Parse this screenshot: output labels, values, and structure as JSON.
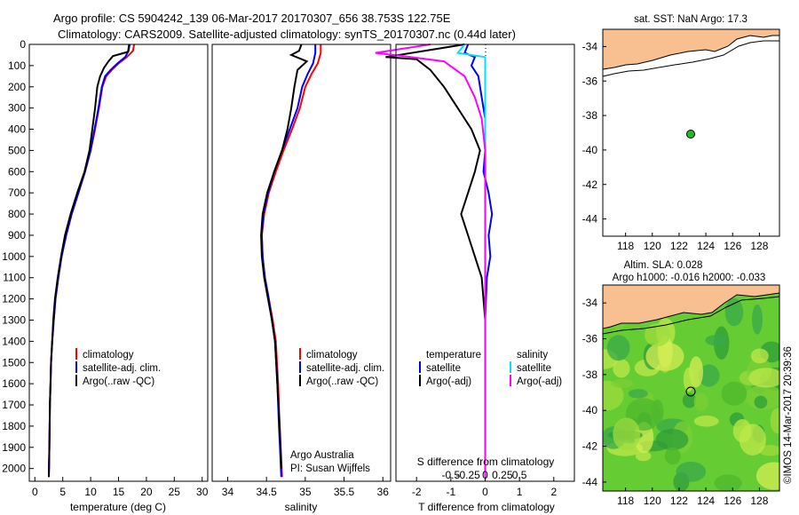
{
  "title": {
    "line1": "Argo profile: CS 5904242_139 06-Mar-2017 20170307_656 38.753S 122.75E",
    "line2": "Climatology: CARS2009. Satellite-adjusted climatology: synTS_20170307.nc (0.44d later)"
  },
  "colors": {
    "climatology": "#ff0000",
    "satellite": "#0000ff",
    "argo": "#000000",
    "sal_satellite": "#00e0ff",
    "sal_argo": "#ff00ff",
    "land": "#f8c090",
    "float_marker": "#22bb22"
  },
  "chart_data": [
    {
      "type": "line",
      "xlabel": "temperature (deg C)",
      "ylabel": "",
      "xlim": [
        -1,
        31
      ],
      "ylim": [
        2060,
        0
      ],
      "xticks": [
        "0",
        "5",
        "10",
        "15",
        "20",
        "25",
        "30"
      ],
      "yticks": [
        "0",
        "100",
        "200",
        "300",
        "400",
        "500",
        "600",
        "700",
        "800",
        "900",
        "1000",
        "1100",
        "1200",
        "1300",
        "1400",
        "1500",
        "1600",
        "1700",
        "1800",
        "1900",
        "2000"
      ],
      "legend": {
        "position": "center-right",
        "entries": [
          "climatology",
          "satellite-adj. clim.",
          "Argo(..raw -QC)"
        ]
      },
      "series": [
        {
          "name": "climatology",
          "color": "#ff0000",
          "x": [
            17.8,
            17.6,
            16.5,
            15.0,
            13.8,
            12.8,
            12.1,
            11.5,
            10.8,
            10.0,
            9.0,
            7.8,
            6.6,
            5.6,
            4.8,
            4.2,
            3.7,
            3.4,
            3.1,
            2.9,
            2.8,
            2.7,
            2.6,
            2.5
          ],
          "y": [
            0,
            30,
            60,
            90,
            120,
            150,
            200,
            300,
            400,
            500,
            600,
            700,
            800,
            900,
            1000,
            1100,
            1200,
            1300,
            1400,
            1500,
            1600,
            1700,
            1900,
            2040
          ]
        },
        {
          "name": "satellite-adj. clim.",
          "color": "#0000ff",
          "x": [
            17.0,
            16.8,
            16.2,
            14.8,
            13.6,
            12.6,
            12.0,
            11.4,
            10.7,
            10.0,
            9.0,
            7.8,
            6.6,
            5.6,
            4.8,
            4.2,
            3.7,
            3.4,
            3.1,
            2.9,
            2.8,
            2.7,
            2.6,
            2.5
          ],
          "y": [
            0,
            30,
            60,
            90,
            120,
            150,
            200,
            300,
            400,
            500,
            600,
            700,
            800,
            900,
            1000,
            1100,
            1200,
            1300,
            1400,
            1500,
            1600,
            1700,
            1900,
            2040
          ]
        },
        {
          "name": "Argo(..raw -QC)",
          "color": "#000000",
          "x": [
            16.9,
            16.7,
            14.0,
            13.2,
            12.4,
            11.7,
            11.2,
            10.8,
            10.3,
            9.8,
            8.9,
            7.6,
            6.4,
            5.4,
            4.7,
            4.1,
            3.6,
            3.3,
            3.1,
            2.9,
            2.8,
            2.7,
            2.6,
            2.5
          ],
          "y": [
            0,
            35,
            55,
            80,
            110,
            150,
            200,
            300,
            400,
            500,
            600,
            700,
            800,
            900,
            1000,
            1100,
            1200,
            1300,
            1400,
            1500,
            1600,
            1700,
            1900,
            2040
          ]
        }
      ]
    },
    {
      "type": "line",
      "xlabel": "salinity",
      "ylabel": "",
      "xlim": [
        33.8,
        36.1
      ],
      "ylim": [
        2060,
        0
      ],
      "xticks": [
        "34",
        "34.5",
        "35",
        "35.5",
        "36"
      ],
      "legend": {
        "position": "center-right",
        "entries": [
          "climatology",
          "satellite-adj. clim.",
          "Argo(..raw -QC)"
        ]
      },
      "annotation": {
        "line1": "Argo Australia",
        "line2": "PI: Susan Wijffels"
      },
      "series": [
        {
          "name": "climatology",
          "color": "#ff0000",
          "x": [
            35.2,
            35.2,
            35.16,
            35.08,
            35.0,
            34.93,
            34.83,
            34.72,
            34.62,
            34.53,
            34.47,
            34.44,
            34.45,
            34.48,
            34.53,
            34.58,
            34.62,
            34.65,
            34.67,
            34.69,
            34.7
          ],
          "y": [
            0,
            40,
            90,
            140,
            200,
            300,
            400,
            500,
            600,
            700,
            800,
            900,
            1000,
            1100,
            1200,
            1300,
            1400,
            1600,
            1800,
            1950,
            2040
          ]
        },
        {
          "name": "satellite-adj. clim.",
          "color": "#0000ff",
          "x": [
            35.13,
            35.13,
            35.1,
            35.03,
            34.96,
            34.9,
            34.8,
            34.7,
            34.6,
            34.52,
            34.46,
            34.44,
            34.45,
            34.48,
            34.53,
            34.57,
            34.61,
            34.64,
            34.66,
            34.68,
            34.69
          ],
          "y": [
            0,
            40,
            90,
            140,
            200,
            300,
            400,
            500,
            600,
            700,
            800,
            900,
            1000,
            1100,
            1200,
            1300,
            1400,
            1600,
            1800,
            1950,
            2040
          ]
        },
        {
          "name": "Argo(..raw -QC)",
          "color": "#000000",
          "x": [
            34.95,
            34.92,
            34.82,
            35.02,
            34.9,
            34.86,
            34.82,
            34.77,
            34.7,
            34.6,
            34.51,
            34.45,
            34.43,
            34.44,
            34.47,
            34.52,
            34.57,
            34.61,
            34.64,
            34.67,
            34.69
          ],
          "y": [
            0,
            30,
            50,
            80,
            120,
            200,
            300,
            400,
            500,
            600,
            700,
            800,
            900,
            1000,
            1100,
            1200,
            1300,
            1400,
            1600,
            1800,
            2000
          ]
        }
      ]
    },
    {
      "type": "line",
      "xlabel": "T difference from climatology",
      "xlabel_top": "S difference from climatology",
      "xlim": [
        -2.6,
        2.6
      ],
      "ylim": [
        2060,
        0
      ],
      "xticks": [
        "-2",
        "-1",
        "0",
        "1",
        "2"
      ],
      "xticks_s": [
        "-0.5",
        "-0.25",
        "0",
        "0.25",
        "0.5"
      ],
      "legend": {
        "position": "center",
        "entries": [
          "temperature",
          "satellite",
          "Argo(-adj)",
          "salinity",
          "satellite",
          "Argo(-adj)"
        ]
      },
      "series": [
        {
          "name": "temperature satellite",
          "color": "#0000ff",
          "x": [
            -0.5,
            -0.6,
            -0.3,
            -0.4,
            -0.2,
            -0.1,
            0,
            0,
            -0.05,
            0.1,
            0.2,
            0.1,
            0.15,
            0.05,
            0,
            0,
            0
          ],
          "y": [
            0,
            40,
            60,
            100,
            150,
            250,
            350,
            500,
            600,
            700,
            800,
            900,
            1000,
            1100,
            1300,
            1600,
            2040
          ]
        },
        {
          "name": "temperature Argo(-adj)",
          "color": "#000000",
          "x": [
            -0.6,
            -2.9,
            -2.0,
            -1.6,
            -1.2,
            -0.8,
            -0.4,
            -0.15,
            -0.3,
            -0.5,
            -0.7,
            -0.5,
            -0.3,
            -0.1,
            0,
            0,
            0
          ],
          "y": [
            0,
            60,
            70,
            120,
            200,
            300,
            400,
            500,
            600,
            700,
            800,
            900,
            1000,
            1100,
            1300,
            1600,
            2040
          ]
        },
        {
          "name": "salinity satellite",
          "color": "#00e0ff",
          "x": [
            -0.3,
            -0.4,
            0,
            0,
            0,
            0,
            0,
            0,
            0,
            0,
            0,
            0,
            0,
            0,
            0
          ],
          "y": [
            0,
            40,
            60,
            100,
            200,
            300,
            400,
            600,
            800,
            1000,
            1200,
            1400,
            1600,
            1800,
            2040
          ]
        },
        {
          "name": "salinity Argo(-adj)",
          "color": "#ff00ff",
          "x": [
            -0.8,
            -1.6,
            -1.2,
            -0.6,
            -0.3,
            -0.15,
            -0.05,
            0,
            0,
            0,
            0,
            0
          ],
          "y": [
            0,
            40,
            55,
            80,
            150,
            250,
            350,
            500,
            700,
            1000,
            1500,
            2040
          ]
        }
      ]
    },
    {
      "type": "scatter",
      "title": "sat. SST: NaN Argo: 17.3",
      "xlim": [
        116.3,
        129.5
      ],
      "ylim": [
        -45,
        -33
      ],
      "xticks": [
        "118",
        "120",
        "122",
        "124",
        "126",
        "128"
      ],
      "yticks": [
        "-34",
        "-36",
        "-38",
        "-40",
        "-42",
        "-44"
      ],
      "float": {
        "lon": 122.75,
        "lat": -38.753
      }
    },
    {
      "type": "heatmap",
      "title": "Altim. SLA: 0.028",
      "subtitle": "Argo h1000: -0.016 h2000: -0.033",
      "xlim": [
        116.3,
        129.5
      ],
      "ylim": [
        -44.5,
        -33
      ],
      "xticks": [
        "118",
        "120",
        "122",
        "124",
        "126",
        "128"
      ],
      "yticks": [
        "-34",
        "-36",
        "-38",
        "-40",
        "-42",
        "-44"
      ],
      "float": {
        "lon": 122.75,
        "lat": -38.753
      }
    }
  ],
  "footer": "©IMOS 14-Mar-2017 20:39:36"
}
